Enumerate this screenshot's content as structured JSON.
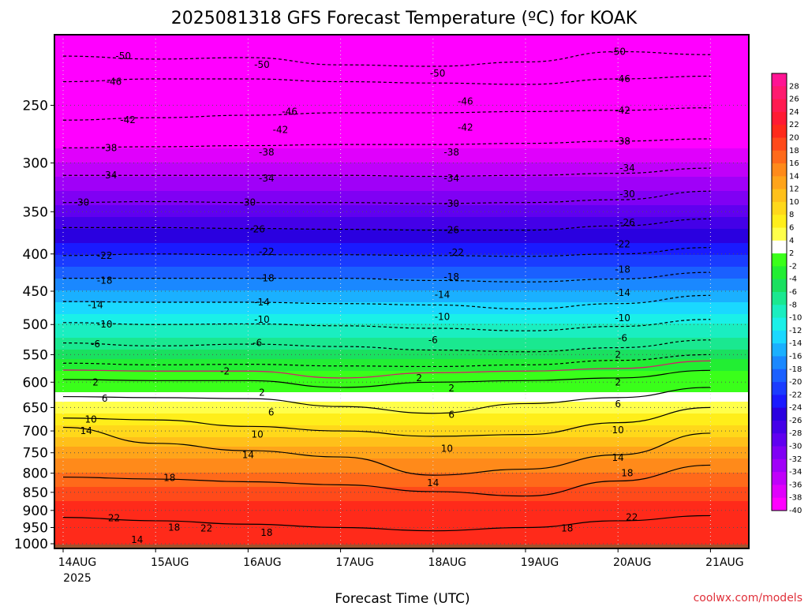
{
  "chart_data": {
    "type": "heatmap",
    "title": "2025081318 GFS Forecast Temperature (ºC) for KOAK",
    "xlabel": "Forecast Time (UTC)",
    "ylabel": "",
    "credit": "coolwx.com/models",
    "x_ticks": [
      "14AUG",
      "15AUG",
      "16AUG",
      "17AUG",
      "18AUG",
      "19AUG",
      "20AUG",
      "21AUG"
    ],
    "x_tick_sub": "2025",
    "y_ticks": [
      250,
      300,
      350,
      400,
      450,
      500,
      550,
      600,
      650,
      700,
      750,
      800,
      850,
      900,
      950,
      1000
    ],
    "y_range_hpa": [
      200,
      1015
    ],
    "y_scale": "log-pressure",
    "colorbar_ticks": [
      28,
      26,
      24,
      22,
      20,
      18,
      16,
      14,
      12,
      10,
      8,
      6,
      4,
      2,
      -2,
      -4,
      -6,
      -8,
      -10,
      -12,
      -14,
      -16,
      -18,
      -20,
      -22,
      -24,
      -26,
      -28,
      -30,
      -32,
      -34,
      -36,
      -38,
      -40
    ],
    "colorbar_colors": [
      "#ff1493",
      "#ff1a6f",
      "#ff1a50",
      "#ff1a33",
      "#ff2a1a",
      "#ff4a1a",
      "#ff6a1a",
      "#ff8a1a",
      "#ffa41a",
      "#ffc01a",
      "#ffd81a",
      "#ffee1a",
      "#ffff4a",
      "#ffffff",
      "#3aff1a",
      "#22ee33",
      "#1ae060",
      "#1ae890",
      "#1aeec0",
      "#1af0e8",
      "#1ad8ff",
      "#1ab0ff",
      "#1a88ff",
      "#1a60ff",
      "#1a3cff",
      "#1a1aff",
      "#2a00e0",
      "#4400e8",
      "#6000f0",
      "#8000f4",
      "#a000f8",
      "#c000fa",
      "#e000fc",
      "#ff00ff"
    ],
    "temperature_levels": [
      {
        "hpa": 200,
        "c": -52
      },
      {
        "hpa": 250,
        "c": -44
      },
      {
        "hpa": 300,
        "c": -36
      },
      {
        "hpa": 350,
        "c": -29
      },
      {
        "hpa": 400,
        "c": -22
      },
      {
        "hpa": 450,
        "c": -16
      },
      {
        "hpa": 500,
        "c": -10
      },
      {
        "hpa": 550,
        "c": -5
      },
      {
        "hpa": 600,
        "c": 0
      },
      {
        "hpa": 650,
        "c": 5
      },
      {
        "hpa": 700,
        "c": 9
      },
      {
        "hpa": 750,
        "c": 13
      },
      {
        "hpa": 800,
        "c": 16
      },
      {
        "hpa": 850,
        "c": 19
      },
      {
        "hpa": 900,
        "c": 21
      },
      {
        "hpa": 950,
        "c": 22
      },
      {
        "hpa": 1000,
        "c": 21
      }
    ],
    "contours": [
      {
        "value": -50,
        "style": "dashed",
        "hpa": [
          214,
          216,
          215,
          220,
          221,
          218,
          211,
          213
        ]
      },
      {
        "value": -46,
        "style": "dashed",
        "hpa": [
          232,
          230,
          230,
          232,
          233,
          234,
          230,
          228
        ]
      },
      {
        "value": -42,
        "style": "dashed",
        "hpa": [
          262,
          260,
          258,
          256,
          256,
          255,
          254,
          252
        ]
      },
      {
        "value": -38,
        "style": "dashed",
        "hpa": [
          286,
          285,
          284,
          283,
          283,
          282,
          280,
          278
        ]
      },
      {
        "value": -34,
        "style": "dashed",
        "hpa": [
          312,
          312,
          312,
          312,
          313,
          312,
          310,
          305
        ]
      },
      {
        "value": -30,
        "style": "dashed",
        "hpa": [
          340,
          339,
          340,
          340,
          341,
          340,
          337,
          328
        ]
      },
      {
        "value": -26,
        "style": "dashed",
        "hpa": [
          368,
          368,
          369,
          370,
          371,
          371,
          366,
          358
        ]
      },
      {
        "value": -22,
        "style": "dashed",
        "hpa": [
          402,
          400,
          401,
          401,
          402,
          403,
          400,
          392
        ]
      },
      {
        "value": -18,
        "style": "dashed",
        "hpa": [
          432,
          432,
          432,
          432,
          435,
          437,
          433,
          424
        ]
      },
      {
        "value": -14,
        "style": "dashed",
        "hpa": [
          465,
          466,
          466,
          468,
          470,
          476,
          468,
          456
        ]
      },
      {
        "value": -10,
        "style": "dashed",
        "hpa": [
          497,
          500,
          499,
          502,
          506,
          510,
          503,
          492
        ]
      },
      {
        "value": -6,
        "style": "dashed",
        "hpa": [
          530,
          535,
          532,
          536,
          542,
          545,
          538,
          525
        ]
      },
      {
        "value": -2,
        "style": "dashed",
        "hpa": [
          565,
          568,
          567,
          570,
          571,
          568,
          560,
          550
        ]
      },
      {
        "value": 2,
        "style": "solid",
        "hpa": [
          595,
          597,
          597,
          610,
          600,
          597,
          592,
          578
        ]
      },
      {
        "value": 6,
        "style": "solid",
        "hpa": [
          628,
          630,
          632,
          648,
          662,
          642,
          630,
          610
        ]
      },
      {
        "value": 10,
        "style": "solid",
        "hpa": [
          672,
          676,
          690,
          700,
          712,
          708,
          682,
          650
        ]
      },
      {
        "value": 14,
        "style": "solid",
        "hpa": [
          692,
          728,
          745,
          760,
          805,
          790,
          755,
          705
        ]
      },
      {
        "value": 18,
        "style": "solid",
        "hpa": [
          810,
          815,
          822,
          830,
          848,
          860,
          820,
          780
        ]
      },
      {
        "value": 22,
        "style": "solid",
        "hpa": [
          920,
          930,
          940,
          950,
          960,
          950,
          930,
          915
        ]
      }
    ],
    "contour_labels": [
      {
        "text": "-50",
        "day": 0.65,
        "hpa": 214
      },
      {
        "text": "-50",
        "day": 2.15,
        "hpa": 220
      },
      {
        "text": "-50",
        "day": 4.05,
        "hpa": 226
      },
      {
        "text": "-50",
        "day": 6.0,
        "hpa": 211
      },
      {
        "text": "-46",
        "day": 0.55,
        "hpa": 232
      },
      {
        "text": "-46",
        "day": 2.45,
        "hpa": 255
      },
      {
        "text": "-46",
        "day": 4.35,
        "hpa": 247
      },
      {
        "text": "-46",
        "day": 6.05,
        "hpa": 230
      },
      {
        "text": "-42",
        "day": 0.7,
        "hpa": 262
      },
      {
        "text": "-42",
        "day": 2.35,
        "hpa": 270
      },
      {
        "text": "-42",
        "day": 4.35,
        "hpa": 268
      },
      {
        "text": "-42",
        "day": 6.05,
        "hpa": 254
      },
      {
        "text": "-38",
        "day": 0.5,
        "hpa": 286
      },
      {
        "text": "-38",
        "day": 2.2,
        "hpa": 290
      },
      {
        "text": "-38",
        "day": 4.2,
        "hpa": 290
      },
      {
        "text": "-38",
        "day": 6.05,
        "hpa": 280
      },
      {
        "text": "-34",
        "day": 0.5,
        "hpa": 312
      },
      {
        "text": "-34",
        "day": 2.2,
        "hpa": 315
      },
      {
        "text": "-34",
        "day": 4.2,
        "hpa": 315
      },
      {
        "text": "-34",
        "day": 6.1,
        "hpa": 305
      },
      {
        "text": "-30",
        "day": 0.2,
        "hpa": 340
      },
      {
        "text": "-30",
        "day": 2.0,
        "hpa": 340
      },
      {
        "text": "-30",
        "day": 4.2,
        "hpa": 341
      },
      {
        "text": "-30",
        "day": 6.1,
        "hpa": 331
      },
      {
        "text": "-26",
        "day": 2.1,
        "hpa": 370
      },
      {
        "text": "-26",
        "day": 4.2,
        "hpa": 371
      },
      {
        "text": "-26",
        "day": 6.1,
        "hpa": 362
      },
      {
        "text": "-22",
        "day": 0.45,
        "hpa": 402
      },
      {
        "text": "-22",
        "day": 2.2,
        "hpa": 397
      },
      {
        "text": "-22",
        "day": 4.25,
        "hpa": 398
      },
      {
        "text": "-22",
        "day": 6.05,
        "hpa": 388
      },
      {
        "text": "-18",
        "day": 0.45,
        "hpa": 435
      },
      {
        "text": "-18",
        "day": 2.2,
        "hpa": 432
      },
      {
        "text": "-18",
        "day": 4.2,
        "hpa": 430
      },
      {
        "text": "-18",
        "day": 6.05,
        "hpa": 420
      },
      {
        "text": "-14",
        "day": 0.35,
        "hpa": 470
      },
      {
        "text": "-14",
        "day": 2.15,
        "hpa": 466
      },
      {
        "text": "-14",
        "day": 4.1,
        "hpa": 455
      },
      {
        "text": "-14",
        "day": 6.05,
        "hpa": 452
      },
      {
        "text": "-10",
        "day": 0.45,
        "hpa": 500
      },
      {
        "text": "-10",
        "day": 2.15,
        "hpa": 492
      },
      {
        "text": "-10",
        "day": 4.1,
        "hpa": 488
      },
      {
        "text": "-10",
        "day": 6.05,
        "hpa": 490
      },
      {
        "text": "-6",
        "day": 0.35,
        "hpa": 532
      },
      {
        "text": "-6",
        "day": 2.1,
        "hpa": 530
      },
      {
        "text": "-6",
        "day": 4.0,
        "hpa": 525
      },
      {
        "text": "-6",
        "day": 6.05,
        "hpa": 522
      },
      {
        "text": "-2",
        "day": 1.75,
        "hpa": 580
      },
      {
        "text": "2",
        "day": 0.35,
        "hpa": 600
      },
      {
        "text": "2",
        "day": 2.15,
        "hpa": 620
      },
      {
        "text": "2",
        "day": 3.85,
        "hpa": 592
      },
      {
        "text": "2",
        "day": 4.2,
        "hpa": 612
      },
      {
        "text": "2",
        "day": 6.0,
        "hpa": 550
      },
      {
        "text": "2",
        "day": 6.0,
        "hpa": 600
      },
      {
        "text": "6",
        "day": 0.45,
        "hpa": 632
      },
      {
        "text": "6",
        "day": 2.25,
        "hpa": 660
      },
      {
        "text": "6",
        "day": 4.2,
        "hpa": 665
      },
      {
        "text": "6",
        "day": 6.0,
        "hpa": 643
      },
      {
        "text": "10",
        "day": 0.3,
        "hpa": 675
      },
      {
        "text": "10",
        "day": 2.1,
        "hpa": 708
      },
      {
        "text": "10",
        "day": 4.15,
        "hpa": 740
      },
      {
        "text": "10",
        "day": 6.0,
        "hpa": 698
      },
      {
        "text": "14",
        "day": 0.25,
        "hpa": 700
      },
      {
        "text": "14",
        "day": 2.0,
        "hpa": 755
      },
      {
        "text": "14",
        "day": 4.0,
        "hpa": 825
      },
      {
        "text": "14",
        "day": 6.0,
        "hpa": 762
      },
      {
        "text": "14",
        "day": 0.8,
        "hpa": 988
      },
      {
        "text": "18",
        "day": 1.15,
        "hpa": 812
      },
      {
        "text": "18",
        "day": 1.2,
        "hpa": 950
      },
      {
        "text": "18",
        "day": 2.2,
        "hpa": 965
      },
      {
        "text": "18",
        "day": 6.1,
        "hpa": 800
      },
      {
        "text": "18",
        "day": 5.45,
        "hpa": 952
      },
      {
        "text": "22",
        "day": 0.55,
        "hpa": 922
      },
      {
        "text": "22",
        "day": 1.55,
        "hpa": 952
      },
      {
        "text": "22",
        "day": 6.15,
        "hpa": 920
      }
    ],
    "ground_color": "#a0522d"
  }
}
